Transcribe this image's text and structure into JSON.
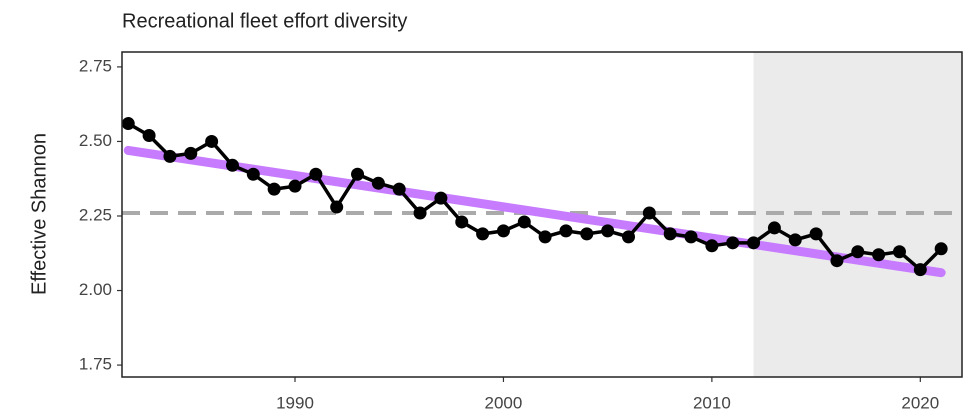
{
  "chart_data": {
    "type": "line",
    "title": "Recreational fleet effort diversity",
    "y_label": "Effective Shannon",
    "x": [
      1982,
      1983,
      1984,
      1985,
      1986,
      1987,
      1988,
      1989,
      1990,
      1991,
      1992,
      1993,
      1994,
      1995,
      1996,
      1997,
      1998,
      1999,
      2000,
      2001,
      2002,
      2003,
      2004,
      2005,
      2006,
      2007,
      2008,
      2009,
      2010,
      2011,
      2012,
      2013,
      2014,
      2015,
      2016,
      2017,
      2018,
      2019,
      2020,
      2021
    ],
    "series": [
      {
        "color": "#000000",
        "values": [
          2.56,
          2.52,
          2.45,
          2.46,
          2.5,
          2.42,
          2.39,
          2.34,
          2.35,
          2.39,
          2.28,
          2.39,
          2.36,
          2.34,
          2.26,
          2.31,
          2.23,
          2.19,
          2.2,
          2.23,
          2.18,
          2.2,
          2.19,
          2.2,
          2.18,
          2.26,
          2.19,
          2.18,
          2.15,
          2.16,
          2.16,
          2.21,
          2.17,
          2.19,
          2.1,
          2.13,
          2.12,
          2.13,
          2.07,
          2.14
        ]
      }
    ],
    "trend": {
      "x": [
        1982,
        2021
      ],
      "values": [
        2.47,
        2.06
      ],
      "color": "#c77cff"
    },
    "reference_line": {
      "value": 2.26,
      "color": "#aaaaaa"
    },
    "highlight": {
      "xlim": [
        2012,
        2022
      ],
      "color": "#ebebeb"
    },
    "xlim": [
      1981.7,
      2022
    ],
    "ylim": [
      1.71,
      2.8
    ],
    "xticks": [
      1990,
      2000,
      2010,
      2020
    ],
    "yticks": [
      1.75,
      {
        "value": 2,
        "label": "2.00"
      },
      2.25,
      {
        "value": 2.5,
        "label": "2.50"
      },
      2.75
    ]
  }
}
